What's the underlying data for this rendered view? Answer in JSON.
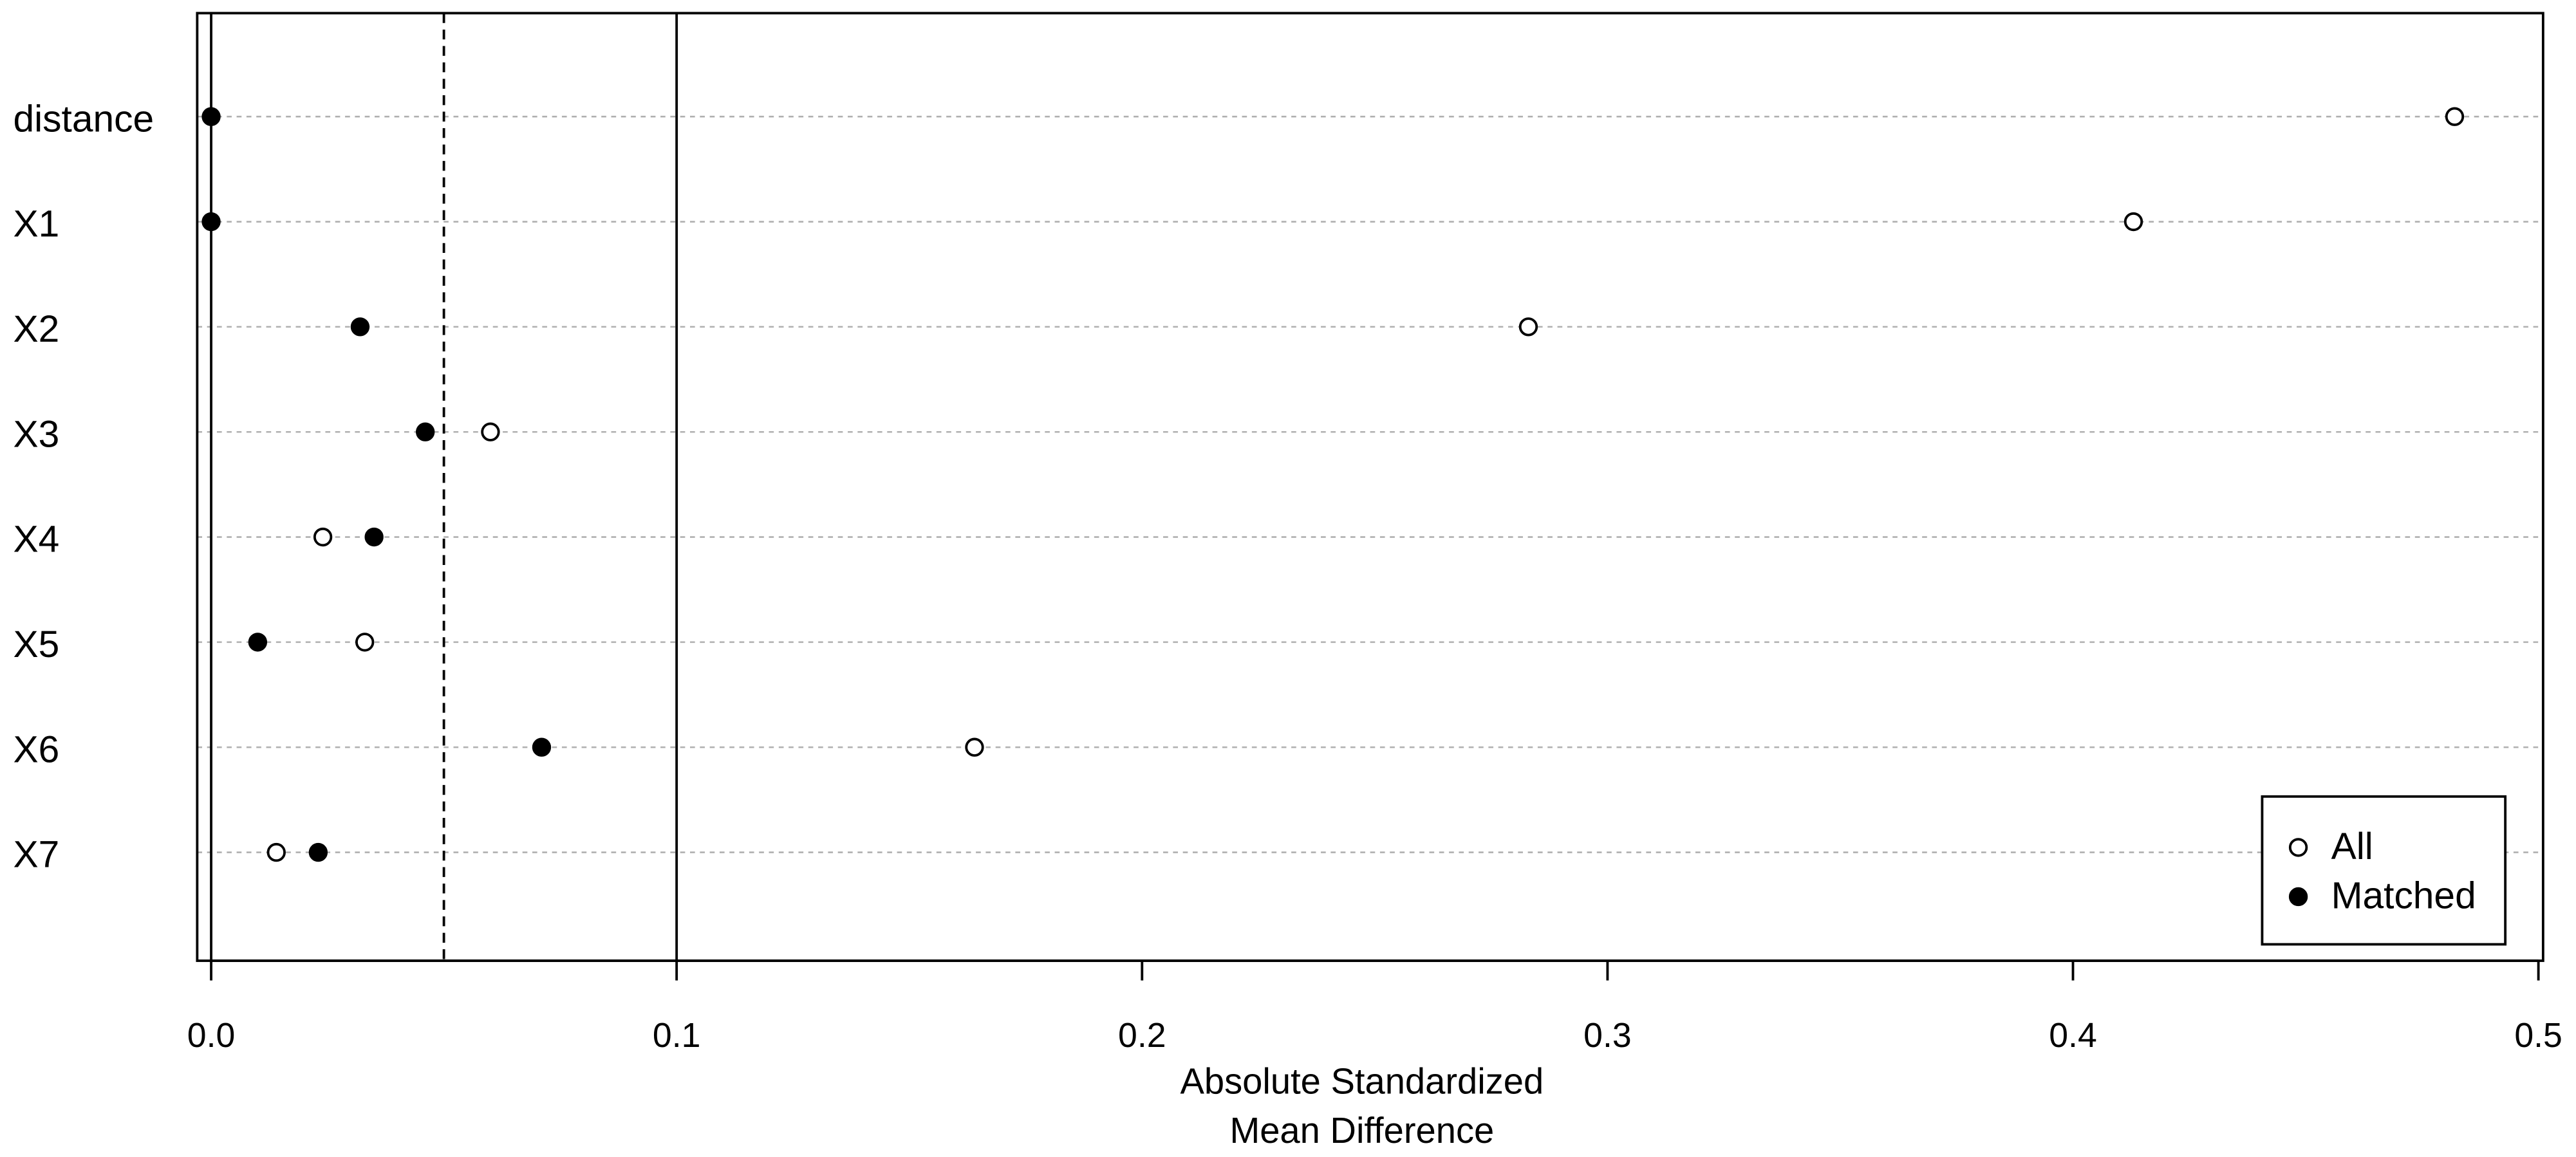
{
  "chart_data": {
    "type": "dotchart",
    "categories": [
      "distance",
      "X1",
      "X2",
      "X3",
      "X4",
      "X5",
      "X6",
      "X7"
    ],
    "series": [
      {
        "name": "All",
        "color": "#000000",
        "marker": "open",
        "values": [
          0.482,
          0.413,
          0.283,
          0.06,
          0.024,
          0.033,
          0.164,
          0.014
        ]
      },
      {
        "name": "Matched",
        "color": "#000000",
        "marker": "filled",
        "values": [
          0,
          0,
          0.032,
          0.046,
          0.035,
          0.01,
          0.071,
          0.023
        ]
      }
    ],
    "x_label": [
      "Absolute Standardized",
      "Mean Difference"
    ],
    "xlim": [
      -0.003,
      0.501
    ],
    "xticks": [
      {
        "value": 0,
        "label": "0.0"
      },
      0.1,
      0.2,
      0.3,
      0.4,
      0.5
    ],
    "reference_lines": [
      {
        "value": 0,
        "dashed": false
      },
      {
        "value": 0.05,
        "dashed": true
      },
      {
        "value": 0.1,
        "dashed": false
      }
    ],
    "row_guides": true,
    "legend": "bottomright"
  }
}
